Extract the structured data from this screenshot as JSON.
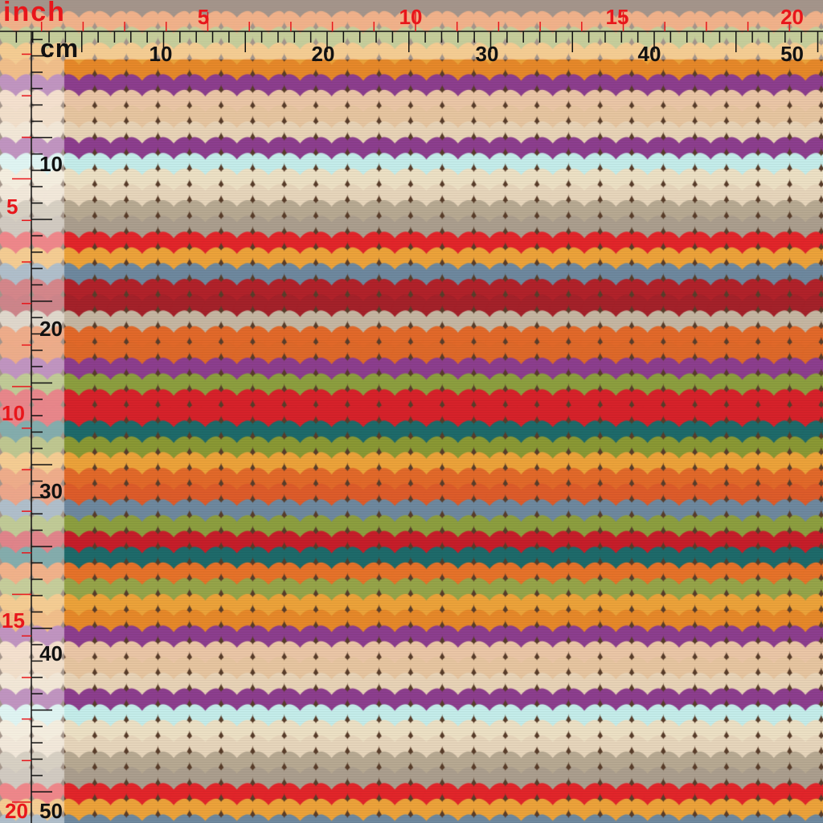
{
  "rulers": {
    "inch_label": "inch",
    "cm_label": "cm",
    "inch_major_marks": [
      "5",
      "10",
      "15",
      "20"
    ],
    "cm_major_marks": [
      "10",
      "20",
      "30",
      "40",
      "50"
    ],
    "inch_color": "#e8161b",
    "cm_color": "#111111"
  },
  "fabric": {
    "pattern": "knit-stitch-stripes",
    "background_color": "#5a3e2b",
    "stripe_colors": [
      "#e8742a",
      "#97a64a",
      "#eea43b",
      "#e88a2a",
      "#8e3f8f",
      "#edc8a8",
      "#e9c7a1",
      "#ead5b8",
      "#8e3f8f",
      "#c6efec",
      "#efe2c6",
      "#e9d7bd",
      "#b9ab94",
      "#ada090",
      "#e4262b",
      "#eea43b",
      "#6f8aa0",
      "#b3232b",
      "#a6222a",
      "#c7b8a3",
      "#e46a2a",
      "#e06a2a",
      "#8e3f8f",
      "#8ea040",
      "#d9232b",
      "#d8232b",
      "#1f6b6b",
      "#8b9a35",
      "#eea43b",
      "#e46a2a",
      "#df5d2b",
      "#6f8aa0",
      "#8ea040",
      "#c81f2a",
      "#1f6b6b"
    ]
  }
}
